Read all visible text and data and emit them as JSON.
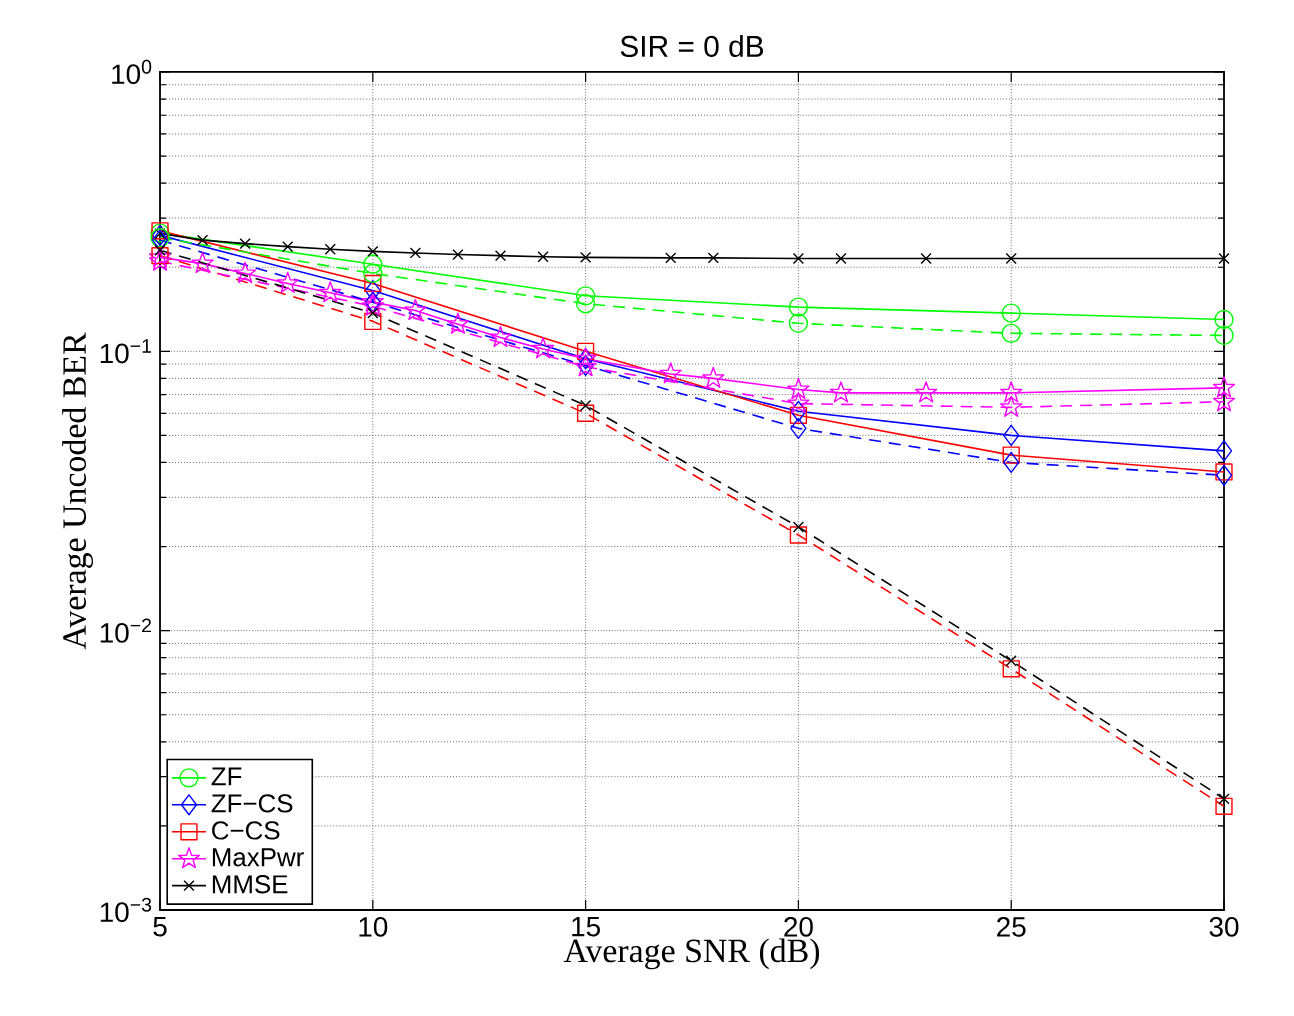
{
  "chart_data": {
    "type": "line",
    "title": "SIR = 0 dB",
    "xlabel": "Average SNR (dB)",
    "ylabel": "Average Uncoded BER",
    "log": "y",
    "grid": true,
    "legend": "bottom left",
    "xlim": [
      5,
      30
    ],
    "xticks": [
      5,
      10,
      15,
      20,
      25,
      30
    ],
    "ylim": [
      0.001,
      1
    ],
    "yticks": [
      {
        "value": 1,
        "label": "10$^{0}$"
      },
      {
        "value": 0.1,
        "label": "10$^{−1}$"
      },
      {
        "value": 0.01,
        "label": "10$^{−2}$"
      },
      {
        "value": 0.001,
        "label": "10$^{−3}$"
      }
    ],
    "series": [
      {
        "name": "ZF",
        "color": "#00ff00",
        "marker": "circle",
        "line_style": "solid",
        "x": [
          5,
          10,
          15,
          20,
          25,
          30
        ],
        "values": [
          0.265,
          0.205,
          0.158,
          0.144,
          0.137,
          0.13
        ]
      },
      {
        "name": "ZF−CS",
        "color": "#0000ff",
        "marker": "diamond",
        "line_style": "solid",
        "x": [
          5,
          10,
          15,
          20,
          25,
          30
        ],
        "values": [
          0.26,
          0.165,
          0.094,
          0.061,
          0.05,
          0.044
        ]
      },
      {
        "name": "C−CS",
        "color": "#ff0000",
        "marker": "square",
        "line_style": "solid",
        "x": [
          5,
          10,
          15,
          20,
          25,
          30
        ],
        "values": [
          0.27,
          0.175,
          0.1,
          0.059,
          0.0425,
          0.037
        ]
      },
      {
        "name": "MaxPwr",
        "color": "#ff00ff",
        "marker": "star",
        "line_style": "solid",
        "x": [
          5,
          6,
          7,
          8,
          9,
          10,
          11,
          12,
          13,
          14,
          15,
          17,
          18,
          20,
          21,
          23,
          25,
          30
        ],
        "values": [
          0.217,
          0.206,
          0.19,
          0.175,
          0.162,
          0.15,
          0.14,
          0.125,
          0.112,
          0.102,
          0.094,
          0.083,
          0.08,
          0.073,
          0.071,
          0.071,
          0.071,
          0.074
        ]
      },
      {
        "name": "MMSE",
        "color": "#000000",
        "marker": "cross",
        "line_style": "solid",
        "x": [
          5,
          6,
          7,
          8,
          9,
          10,
          11,
          12,
          13,
          14,
          15,
          17,
          18,
          20,
          21,
          23,
          25,
          30
        ],
        "values": [
          0.264,
          0.25,
          0.243,
          0.237,
          0.232,
          0.228,
          0.225,
          0.222,
          0.22,
          0.218,
          0.217,
          0.216,
          0.216,
          0.215,
          0.215,
          0.215,
          0.215,
          0.215
        ]
      },
      {
        "color": "#00ff00",
        "marker": "circle",
        "line_style": "dashed",
        "x": [
          5,
          10,
          15,
          20,
          25,
          30
        ],
        "values": [
          0.255,
          0.19,
          0.148,
          0.126,
          0.116,
          0.114
        ]
      },
      {
        "color": "#0000ff",
        "marker": "diamond",
        "line_style": "dashed",
        "x": [
          5,
          10,
          15,
          20,
          25,
          30
        ],
        "values": [
          0.25,
          0.15,
          0.089,
          0.053,
          0.04,
          0.036
        ]
      },
      {
        "color": "#ff0000",
        "marker": "square",
        "line_style": "dashed",
        "x": [
          5,
          10,
          15,
          20,
          25,
          30
        ],
        "values": [
          0.22,
          0.128,
          0.06,
          0.022,
          0.0073,
          0.00235
        ]
      },
      {
        "color": "#ff00ff",
        "marker": "star",
        "line_style": "dashed",
        "x": [
          5,
          10,
          15,
          20,
          25,
          30
        ],
        "values": [
          0.21,
          0.145,
          0.088,
          0.065,
          0.063,
          0.066
        ]
      },
      {
        "color": "#000000",
        "marker": "cross",
        "line_style": "dashed",
        "x": [
          5,
          10,
          15,
          20,
          25,
          30
        ],
        "values": [
          0.23,
          0.137,
          0.064,
          0.0235,
          0.0078,
          0.0025
        ]
      }
    ]
  }
}
